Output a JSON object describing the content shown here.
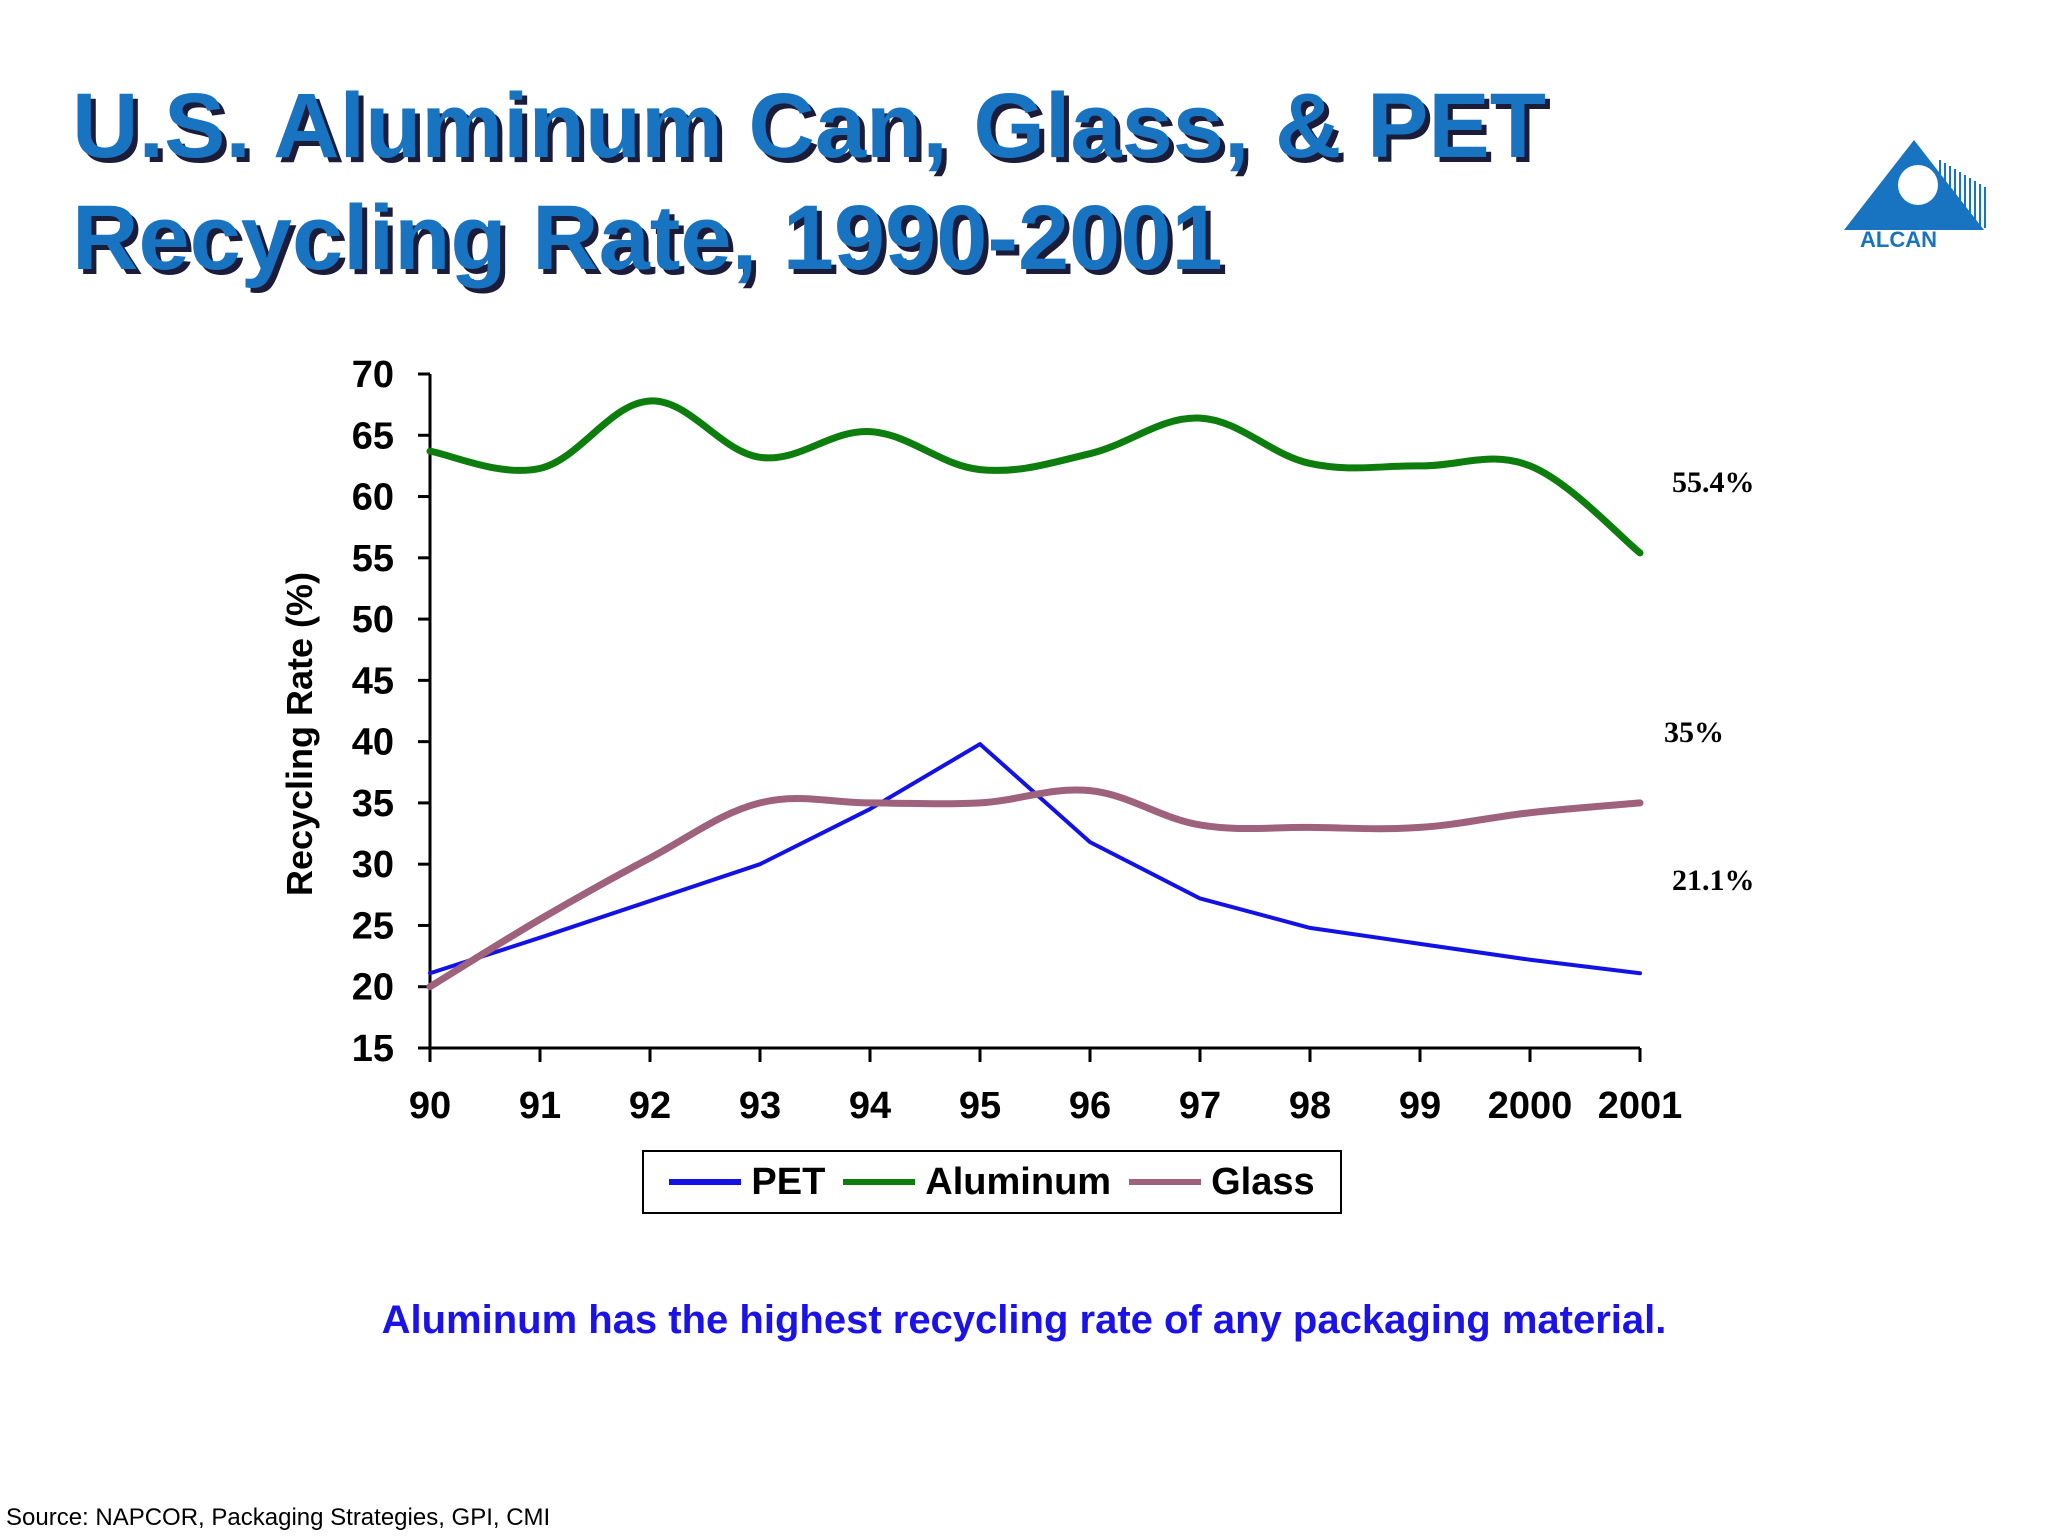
{
  "slide": {
    "title_line1": "U.S. Aluminum Can, Glass, & PET",
    "title_line2": "Recycling Rate, 1990-2001",
    "logo_text": "ALCAN",
    "caption": "Aluminum has the highest recycling rate of any packaging material.",
    "source": "Source: NAPCOR, Packaging Strategies, GPI, CMI"
  },
  "colors": {
    "title": "#1873c0",
    "title_shadow": "#1b1b3a",
    "pet": "#1212e6",
    "aluminum": "#0d7d0d",
    "glass": "#9e627d",
    "caption": "#1a12e6"
  },
  "chart_data": {
    "type": "line",
    "title": "",
    "xlabel": "",
    "ylabel": "Recycling Rate (%)",
    "categories": [
      "90",
      "91",
      "92",
      "93",
      "94",
      "95",
      "96",
      "97",
      "98",
      "99",
      "2000",
      "2001"
    ],
    "ylim": [
      15,
      70
    ],
    "yticks": [
      15,
      20,
      25,
      30,
      35,
      40,
      45,
      50,
      55,
      60,
      65,
      70
    ],
    "grid": false,
    "legend_placement": "bottom",
    "series": [
      {
        "name": "PET",
        "color": "#1212e6",
        "values": [
          21.1,
          24.0,
          27.0,
          30.0,
          34.5,
          39.8,
          31.8,
          27.2,
          24.8,
          23.5,
          22.2,
          21.1
        ]
      },
      {
        "name": "Aluminum",
        "color": "#0d7d0d",
        "values": [
          63.7,
          62.3,
          67.8,
          63.2,
          65.3,
          62.2,
          63.5,
          66.4,
          62.7,
          62.5,
          62.5,
          55.4
        ]
      },
      {
        "name": "Glass",
        "color": "#9e627d",
        "values": [
          20.0,
          25.5,
          30.5,
          35.0,
          35.0,
          35.0,
          36.0,
          33.2,
          33.0,
          33.0,
          34.2,
          35.0
        ]
      }
    ],
    "annotations": [
      {
        "text": "55.4%",
        "series": "Aluminum",
        "value": 55.4
      },
      {
        "text": "35%",
        "series": "Glass",
        "value": 35
      },
      {
        "text": "21.1%",
        "series": "PET",
        "value": 21.1
      }
    ]
  }
}
